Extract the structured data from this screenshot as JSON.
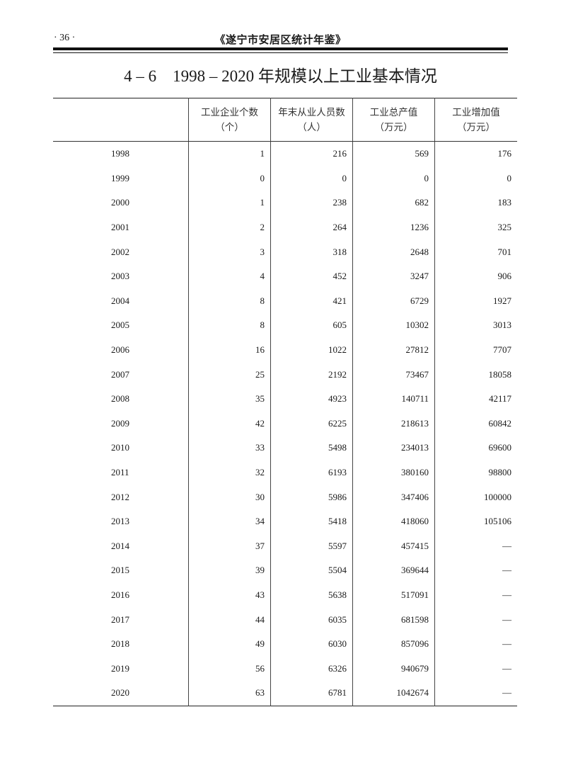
{
  "header": {
    "page_number": "· 36 ·",
    "book_title": "《遂宁市安居区统计年鉴》"
  },
  "table_title": "4 – 6　1998 – 2020 年规模以上工业基本情况",
  "columns": [
    {
      "label": "",
      "unit": ""
    },
    {
      "label": "工业企业个数",
      "unit": "（个）"
    },
    {
      "label": "年末从业人员数",
      "unit": "（人）"
    },
    {
      "label": "工业总产值",
      "unit": "（万元）"
    },
    {
      "label": "工业增加值",
      "unit": "（万元）"
    }
  ],
  "rows": [
    [
      "1998",
      "1",
      "216",
      "569",
      "176"
    ],
    [
      "1999",
      "0",
      "0",
      "0",
      "0"
    ],
    [
      "2000",
      "1",
      "238",
      "682",
      "183"
    ],
    [
      "2001",
      "2",
      "264",
      "1236",
      "325"
    ],
    [
      "2002",
      "3",
      "318",
      "2648",
      "701"
    ],
    [
      "2003",
      "4",
      "452",
      "3247",
      "906"
    ],
    [
      "2004",
      "8",
      "421",
      "6729",
      "1927"
    ],
    [
      "2005",
      "8",
      "605",
      "10302",
      "3013"
    ],
    [
      "2006",
      "16",
      "1022",
      "27812",
      "7707"
    ],
    [
      "2007",
      "25",
      "2192",
      "73467",
      "18058"
    ],
    [
      "2008",
      "35",
      "4923",
      "140711",
      "42117"
    ],
    [
      "2009",
      "42",
      "6225",
      "218613",
      "60842"
    ],
    [
      "2010",
      "33",
      "5498",
      "234013",
      "69600"
    ],
    [
      "2011",
      "32",
      "6193",
      "380160",
      "98800"
    ],
    [
      "2012",
      "30",
      "5986",
      "347406",
      "100000"
    ],
    [
      "2013",
      "34",
      "5418",
      "418060",
      "105106"
    ],
    [
      "2014",
      "37",
      "5597",
      "457415",
      "—"
    ],
    [
      "2015",
      "39",
      "5504",
      "369644",
      "—"
    ],
    [
      "2016",
      "43",
      "5638",
      "517091",
      "—"
    ],
    [
      "2017",
      "44",
      "6035",
      "681598",
      "—"
    ],
    [
      "2018",
      "49",
      "6030",
      "857096",
      "—"
    ],
    [
      "2019",
      "56",
      "6326",
      "940679",
      "—"
    ],
    [
      "2020",
      "63",
      "6781",
      "1042674",
      "—"
    ]
  ]
}
